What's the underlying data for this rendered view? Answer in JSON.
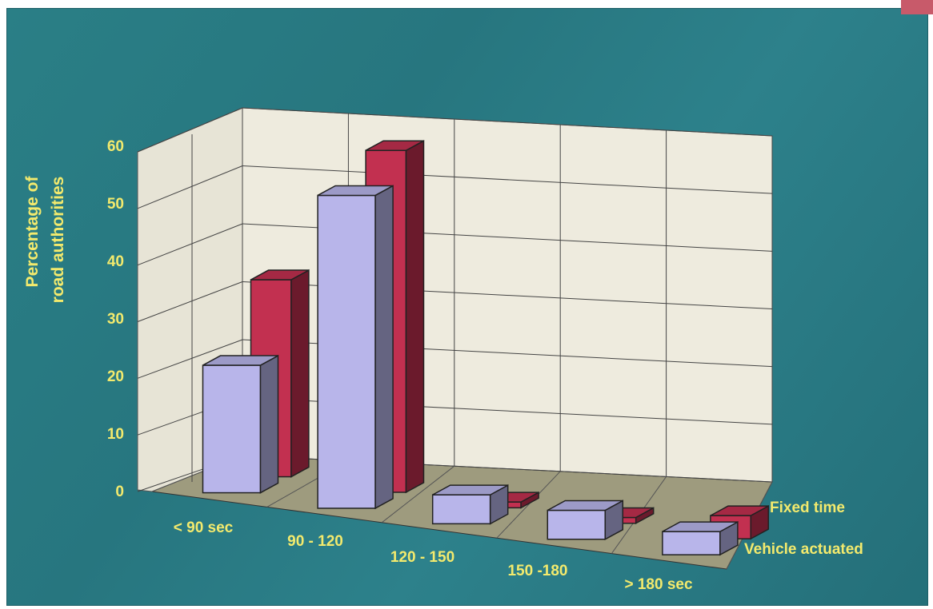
{
  "chart_data": {
    "type": "bar",
    "ylabel": "Percentage of road authorities",
    "ylabel_lines": [
      "Percentage of",
      "road authorities"
    ],
    "ylim": [
      0,
      60
    ],
    "yticks": [
      "0",
      "10",
      "20",
      "30",
      "40",
      "50",
      "60"
    ],
    "grid": true,
    "categories": [
      "< 90 sec",
      "90 - 120",
      "120 - 150",
      "150 -180",
      "> 180 sec"
    ],
    "series": [
      {
        "name": "Vehicle actuated",
        "values": [
          22,
          54,
          5,
          5,
          4
        ],
        "color": "#b8b5ea"
      },
      {
        "name": "Fixed time",
        "values": [
          34,
          59,
          1,
          1,
          4
        ],
        "color": "#c23050"
      }
    ],
    "colors": {
      "background": "#2a7f86",
      "text": "#f3ea6d",
      "wall": "#eeebde",
      "floor": "#9e9b7e"
    }
  }
}
